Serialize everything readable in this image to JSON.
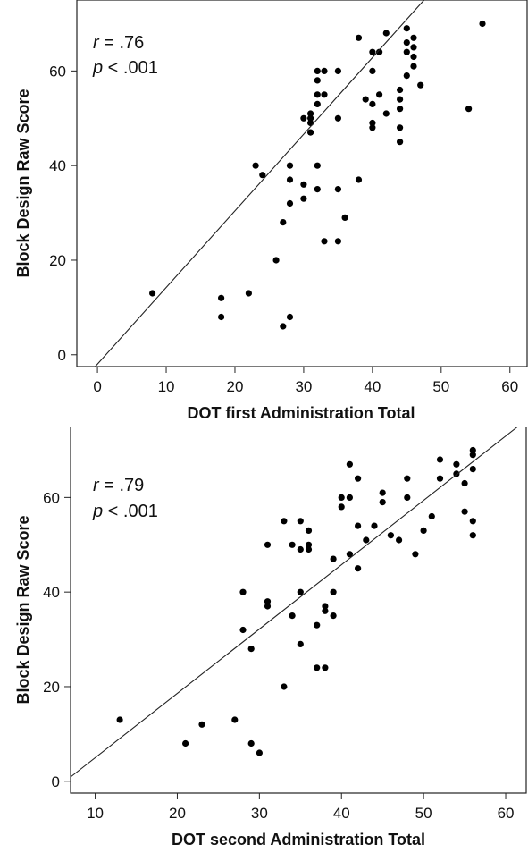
{
  "chart_data": [
    {
      "type": "scatter",
      "title": "",
      "xlabel": "DOT first Administration Total",
      "ylabel": "Block Design Raw Score",
      "xlim": [
        -3,
        62.5
      ],
      "ylim": [
        -2.5,
        75
      ],
      "xticks": [
        0,
        10,
        20,
        30,
        40,
        50,
        60
      ],
      "yticks": [
        0,
        20,
        40,
        60
      ],
      "annotations": {
        "r_label": "r",
        "r_value": " = .76",
        "p_label": "p",
        "p_value": " < .001"
      },
      "fit_line": {
        "slope": 1.62,
        "intercept": -1.97
      },
      "points": [
        [
          8,
          13
        ],
        [
          18,
          12
        ],
        [
          18,
          8
        ],
        [
          22,
          13
        ],
        [
          23,
          40
        ],
        [
          24,
          38
        ],
        [
          26,
          20
        ],
        [
          27,
          6
        ],
        [
          27,
          28
        ],
        [
          28,
          8
        ],
        [
          28,
          40
        ],
        [
          28,
          37
        ],
        [
          28,
          32
        ],
        [
          30,
          50
        ],
        [
          30,
          36
        ],
        [
          30,
          33
        ],
        [
          31,
          51
        ],
        [
          31,
          50
        ],
        [
          31,
          49
        ],
        [
          31,
          47
        ],
        [
          32,
          60
        ],
        [
          32,
          58
        ],
        [
          32,
          55
        ],
        [
          32,
          53
        ],
        [
          32,
          40
        ],
        [
          32,
          35
        ],
        [
          33,
          60
        ],
        [
          33,
          55
        ],
        [
          33,
          24
        ],
        [
          35,
          60
        ],
        [
          35,
          50
        ],
        [
          35,
          35
        ],
        [
          35,
          24
        ],
        [
          36,
          29
        ],
        [
          38,
          67
        ],
        [
          38,
          37
        ],
        [
          39,
          54
        ],
        [
          40,
          64
        ],
        [
          40,
          60
        ],
        [
          40,
          53
        ],
        [
          40,
          49
        ],
        [
          40,
          48
        ],
        [
          41,
          64
        ],
        [
          41,
          55
        ],
        [
          42,
          68
        ],
        [
          42,
          51
        ],
        [
          44,
          56
        ],
        [
          44,
          54
        ],
        [
          44,
          52
        ],
        [
          44,
          48
        ],
        [
          44,
          45
        ],
        [
          45,
          69
        ],
        [
          45,
          66
        ],
        [
          45,
          64
        ],
        [
          45,
          59
        ],
        [
          46,
          67
        ],
        [
          46,
          65
        ],
        [
          46,
          63
        ],
        [
          46,
          61
        ],
        [
          47,
          57
        ],
        [
          54,
          52
        ],
        [
          56,
          70
        ]
      ]
    },
    {
      "type": "scatter",
      "title": "",
      "xlabel": "DOT second Administration Total",
      "ylabel": "Block Design Raw Score",
      "xlim": [
        7,
        62.5
      ],
      "ylim": [
        -2.5,
        75
      ],
      "xticks": [
        10,
        20,
        30,
        40,
        50,
        60
      ],
      "yticks": [
        0,
        20,
        40,
        60
      ],
      "annotations": {
        "r_label": "r",
        "r_value": " = .79",
        "p_label": "p",
        "p_value": " < .001"
      },
      "fit_line": {
        "slope": 1.36,
        "intercept": -8.62
      },
      "points": [
        [
          13,
          13
        ],
        [
          21,
          8
        ],
        [
          23,
          12
        ],
        [
          27,
          13
        ],
        [
          28,
          40
        ],
        [
          28,
          32
        ],
        [
          29,
          28
        ],
        [
          29,
          8
        ],
        [
          30,
          6
        ],
        [
          31,
          50
        ],
        [
          31,
          38
        ],
        [
          31,
          37
        ],
        [
          33,
          55
        ],
        [
          33,
          20
        ],
        [
          34,
          50
        ],
        [
          34,
          35
        ],
        [
          35,
          55
        ],
        [
          35,
          49
        ],
        [
          35,
          40
        ],
        [
          35,
          29
        ],
        [
          36,
          53
        ],
        [
          36,
          50
        ],
        [
          36,
          49
        ],
        [
          37,
          33
        ],
        [
          37,
          24
        ],
        [
          38,
          37
        ],
        [
          38,
          36
        ],
        [
          38,
          24
        ],
        [
          39,
          47
        ],
        [
          39,
          40
        ],
        [
          39,
          35
        ],
        [
          40,
          60
        ],
        [
          40,
          58
        ],
        [
          41,
          67
        ],
        [
          41,
          60
        ],
        [
          41,
          48
        ],
        [
          42,
          64
        ],
        [
          42,
          54
        ],
        [
          42,
          45
        ],
        [
          43,
          51
        ],
        [
          44,
          54
        ],
        [
          45,
          61
        ],
        [
          45,
          59
        ],
        [
          46,
          52
        ],
        [
          47,
          51
        ],
        [
          48,
          64
        ],
        [
          48,
          60
        ],
        [
          49,
          48
        ],
        [
          50,
          53
        ],
        [
          51,
          56
        ],
        [
          52,
          68
        ],
        [
          52,
          64
        ],
        [
          54,
          67
        ],
        [
          54,
          65
        ],
        [
          55,
          63
        ],
        [
          55,
          57
        ],
        [
          56,
          70
        ],
        [
          56,
          69
        ],
        [
          56,
          66
        ],
        [
          56,
          55
        ],
        [
          56,
          52
        ]
      ]
    }
  ]
}
